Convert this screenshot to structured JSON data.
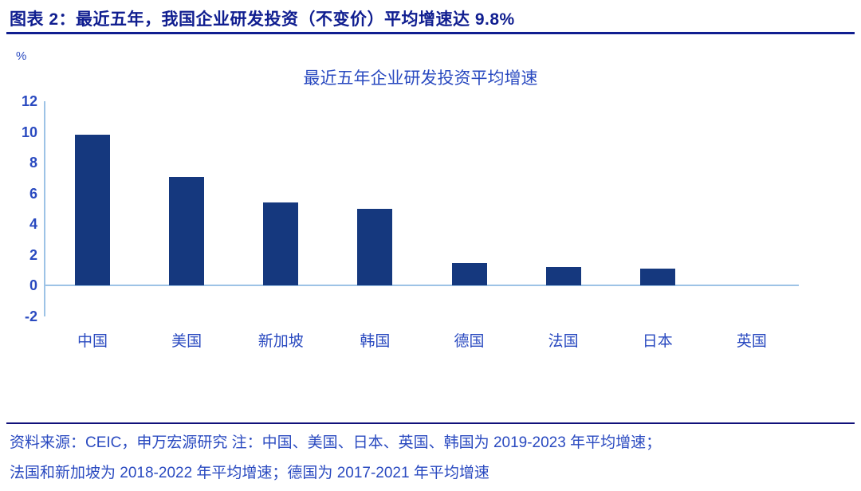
{
  "page": {
    "header_title": "图表 2：最近五年，我国企业研发投资（不变价）平均增速达 9.8%"
  },
  "chart": {
    "title": "最近五年企业研发投资平均增速",
    "unit_label": "%"
  },
  "chart_data": {
    "type": "bar",
    "title": "最近五年企业研发投资平均增速",
    "categories": [
      "中国",
      "美国",
      "新加坡",
      "韩国",
      "德国",
      "法国",
      "日本",
      "英国"
    ],
    "values": [
      9.8,
      7.1,
      5.4,
      5.0,
      1.5,
      1.2,
      1.1,
      0
    ],
    "xlabel": "",
    "ylabel": "%",
    "ylim": [
      -2,
      12
    ],
    "yticks": [
      12,
      10,
      8,
      6,
      4,
      2,
      0,
      -2
    ],
    "grid": false,
    "legend": false,
    "bar_color": "#15387E",
    "axis_color": "#9DC3E6",
    "text_color": "#2A4AC0"
  },
  "footer": {
    "line1": "资料来源：CEIC，申万宏源研究 注：中国、美国、日本、英国、韩国为 2019-2023 年平均增速；",
    "line2": "法国和新加坡为 2018-2022 年平均增速；德国为 2017-2021 年平均增速"
  }
}
